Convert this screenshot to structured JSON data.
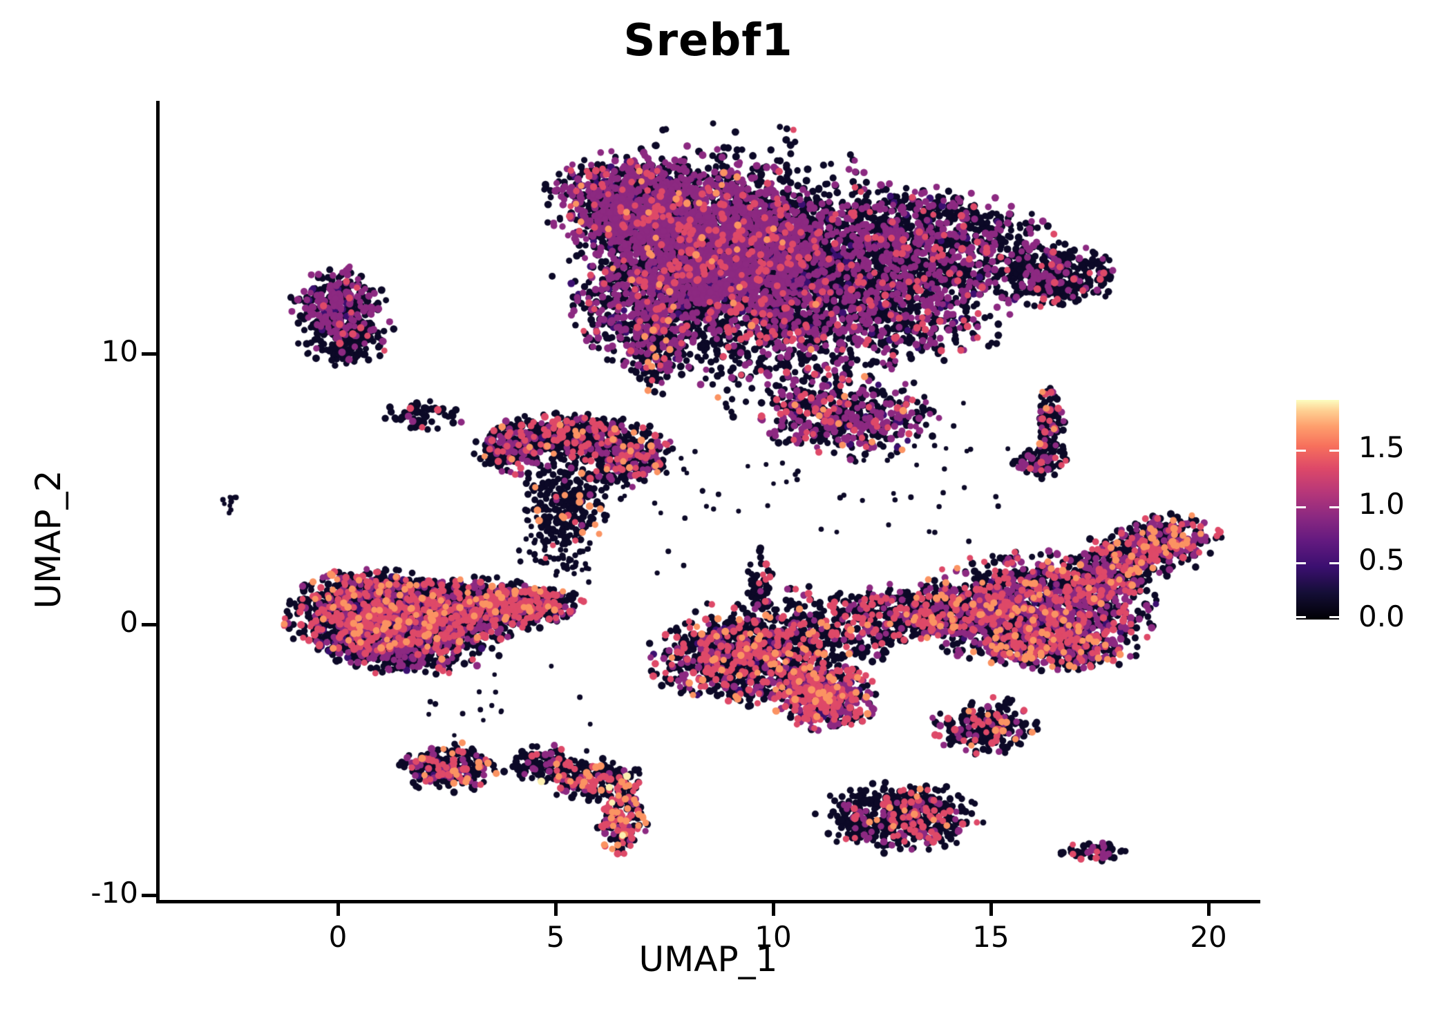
{
  "title": "Srebf1",
  "axes": {
    "x": {
      "label": "UMAP_1",
      "tick_labels": [
        "0",
        "5",
        "10",
        "15",
        "20"
      ],
      "tick_values": [
        0,
        5,
        10,
        15,
        20
      ],
      "range": [
        -4.15,
        21.15
      ]
    },
    "y": {
      "label": "UMAP_2",
      "tick_labels": [
        "10",
        "0",
        "-10"
      ],
      "tick_values": [
        10,
        0,
        -10
      ],
      "range": [
        -10.25,
        19.35
      ]
    }
  },
  "colorbar": {
    "tick_labels": [
      "1.5",
      "1.0",
      "0.5",
      "0.0"
    ],
    "tick_values": [
      1.5,
      1.0,
      0.5,
      0.0
    ],
    "range": [
      0,
      1.95
    ],
    "colormap": "magma",
    "gradient_stops": [
      [
        0,
        "#000004"
      ],
      [
        0.12,
        "#140e36"
      ],
      [
        0.24,
        "#3b0f70"
      ],
      [
        0.36,
        "#641a80"
      ],
      [
        0.47,
        "#8c2981"
      ],
      [
        0.58,
        "#b73779"
      ],
      [
        0.69,
        "#de4968"
      ],
      [
        0.79,
        "#f7705c"
      ],
      [
        0.88,
        "#fe9f6d"
      ],
      [
        0.95,
        "#fecf92"
      ],
      [
        1,
        "#fcfdbf"
      ]
    ]
  },
  "chart_data": {
    "type": "scatter",
    "title": "Srebf1",
    "xlabel": "UMAP_1",
    "ylabel": "UMAP_2",
    "xlim": [
      -4.15,
      21.15
    ],
    "ylim": [
      -10.25,
      19.35
    ],
    "grid": false,
    "legend": {
      "kind": "colorbar",
      "position": "right",
      "values": [
        0.0,
        0.5,
        1.0,
        1.5
      ],
      "range": [
        0,
        1.95
      ]
    },
    "expression_color_levels": {
      "b": "#0c0927",
      "d": "#3b0f70",
      "p": "#8c2981",
      "m": "#de4968",
      "o": "#fb9362",
      "c": "#fcf0b2"
    },
    "point_radius_px": [
      4.4,
      5.6
    ],
    "seed": 1337,
    "n_points_approx": 19800,
    "clusters": [
      {
        "name": "top-mass-left-ridge",
        "components": [
          {
            "cx": 6.7,
            "cy": 15.6,
            "sx": 0.9,
            "sy": 0.85,
            "n": 1000,
            "w": {
              "p": 0.45,
              "m": 0.05,
              "d": 0.04,
              "o": 0.01
            }
          },
          {
            "cx": 8.7,
            "cy": 14.3,
            "sx": 1.25,
            "sy": 1.25,
            "n": 1700,
            "w": {
              "p": 0.44,
              "m": 0.06,
              "d": 0.04,
              "o": 0.01
            }
          },
          {
            "cx": 7.3,
            "cy": 11.9,
            "sx": 0.85,
            "sy": 1.15,
            "n": 800,
            "w": {
              "p": 0.34,
              "m": 0.05,
              "d": 0.05,
              "o": 0.01
            }
          },
          {
            "cx": 9.7,
            "cy": 12.4,
            "sx": 1.05,
            "sy": 1.15,
            "n": 800,
            "w": {
              "p": 0.3,
              "m": 0.06,
              "d": 0.04,
              "o": 0.01
            }
          },
          {
            "cx": 9.0,
            "cy": 13.6,
            "sx": 1.9,
            "sy": 2.2,
            "n": 700,
            "w": {
              "p": 0.22,
              "m": 0.04,
              "d": 0.03
            }
          },
          {
            "cx": 7.25,
            "cy": 10.1,
            "sx": 0.22,
            "sy": 0.85,
            "n": 130,
            "w": {
              "p": 0.06,
              "m": 0.04,
              "o": 0.08
            }
          }
        ]
      },
      {
        "name": "top-mass-right",
        "components": [
          {
            "cx": 12.7,
            "cy": 14.0,
            "sx": 1.7,
            "sy": 1.05,
            "n": 1500,
            "w": {
              "p": 0.25,
              "m": 0.04,
              "d": 0.04
            }
          },
          {
            "cx": 12.4,
            "cy": 11.7,
            "sx": 1.5,
            "sy": 0.95,
            "n": 750,
            "w": {
              "p": 0.28,
              "m": 0.05,
              "d": 0.03
            }
          },
          {
            "cx": 16.5,
            "cy": 12.9,
            "sx": 0.65,
            "sy": 0.55,
            "n": 380,
            "w": {
              "p": 0.12,
              "m": 0.03
            }
          },
          {
            "cx": 11.7,
            "cy": 7.6,
            "sx": 0.95,
            "sy": 0.7,
            "n": 480,
            "w": {
              "p": 0.3,
              "m": 0.06,
              "d": 0.03,
              "o": 0.01
            }
          },
          {
            "cx": 10.6,
            "cy": 10.3,
            "sx": 1.3,
            "sy": 1.4,
            "n": 380,
            "w": {
              "p": 0.22,
              "m": 0.06,
              "o": 0.01
            }
          }
        ]
      },
      {
        "name": "upper-left-island",
        "components": [
          {
            "cx": 0.0,
            "cy": 11.9,
            "sx": 0.5,
            "sy": 0.6,
            "n": 260,
            "w": {
              "p": 0.42,
              "d": 0.05,
              "m": 0.02
            }
          },
          {
            "cx": 0.2,
            "cy": 10.6,
            "sx": 0.5,
            "sy": 0.5,
            "n": 200,
            "w": {
              "p": 0.12,
              "m": 0.02
            }
          }
        ]
      },
      {
        "name": "far-left-speck",
        "components": [
          {
            "cx": -2.45,
            "cy": 4.55,
            "sx": 0.09,
            "sy": 0.2,
            "n": 10,
            "w": {},
            "r": [
              3.2,
              4.2
            ]
          }
        ]
      },
      {
        "name": "small-mid-left",
        "components": [
          {
            "cx": 1.95,
            "cy": 7.75,
            "sx": 0.45,
            "sy": 0.26,
            "n": 60,
            "w": {
              "p": 0.07,
              "m": 0.04
            }
          }
        ]
      },
      {
        "name": "seahorse-arc",
        "components": [
          {
            "cx": 4.15,
            "cy": 6.55,
            "sx": 0.5,
            "sy": 0.5,
            "n": 240,
            "w": {
              "p": 0.18,
              "m": 0.14,
              "d": 0.03,
              "o": 0.01
            }
          },
          {
            "cx": 5.35,
            "cy": 7.0,
            "sx": 0.7,
            "sy": 0.4,
            "n": 300,
            "w": {
              "p": 0.1,
              "m": 0.16,
              "o": 0.02
            }
          },
          {
            "cx": 6.55,
            "cy": 6.3,
            "sx": 0.55,
            "sy": 0.55,
            "n": 320,
            "w": {
              "p": 0.18,
              "m": 0.12,
              "o": 0.03
            }
          },
          {
            "cx": 5.35,
            "cy": 4.65,
            "sx": 0.5,
            "sy": 0.8,
            "n": 210,
            "w": {
              "p": 0.05,
              "m": 0.03,
              "o": 0.04
            }
          },
          {
            "cx": 4.95,
            "cy": 3.1,
            "sx": 0.4,
            "sy": 0.65,
            "n": 80,
            "w": {
              "m": 0.02,
              "o": 0.02
            },
            "r": [
              3.6,
              4.6
            ]
          }
        ]
      },
      {
        "name": "left-large-blob",
        "components": [
          {
            "cx": 0.9,
            "cy": 0.3,
            "sx": 0.95,
            "sy": 0.8,
            "n": 1500,
            "w": {
              "p": 0.13,
              "m": 0.13,
              "d": 0.04,
              "o": 0.04
            }
          },
          {
            "cx": 2.9,
            "cy": 0.55,
            "sx": 1.0,
            "sy": 0.55,
            "n": 900,
            "w": {
              "p": 0.12,
              "m": 0.14,
              "o": 0.03,
              "d": 0.02
            }
          },
          {
            "cx": 4.3,
            "cy": 0.75,
            "sx": 0.6,
            "sy": 0.35,
            "n": 350,
            "w": {
              "p": 0.1,
              "m": 0.2,
              "o": 0.04
            }
          },
          {
            "cx": 1.7,
            "cy": -0.75,
            "sx": 0.95,
            "sy": 0.5,
            "n": 500,
            "w": {
              "p": 0.2,
              "m": 0.1,
              "o": 0.02,
              "d": 0.03
            }
          },
          {
            "cx": 5.3,
            "cy": 2.5,
            "sx": 0.3,
            "sy": 0.55,
            "n": 22,
            "w": {},
            "r": [
              3.2,
              4.2
            ]
          }
        ]
      },
      {
        "name": "center-bottom-manta",
        "components": [
          {
            "cx": 9.7,
            "cy": 1.55,
            "sx": 0.16,
            "sy": 0.6,
            "n": 55,
            "w": {
              "m": 0.12,
              "p": 0.04
            }
          },
          {
            "cx": 9.3,
            "cy": -1.3,
            "sx": 1.0,
            "sy": 0.75,
            "n": 850,
            "w": {
              "p": 0.12,
              "m": 0.18,
              "o": 0.04,
              "d": 0.03
            }
          },
          {
            "cx": 11.2,
            "cy": -2.7,
            "sx": 0.55,
            "sy": 0.55,
            "n": 480,
            "w": {
              "p": 0.3,
              "m": 0.25,
              "o": 0.06,
              "d": 0.04
            }
          },
          {
            "cx": 10.7,
            "cy": -0.3,
            "sx": 1.2,
            "sy": 0.8,
            "n": 420,
            "w": {
              "p": 0.1,
              "m": 0.12,
              "o": 0.02
            }
          },
          {
            "cx": 13.5,
            "cy": 0.4,
            "sx": 1.1,
            "sy": 0.5,
            "n": 480,
            "w": {
              "p": 0.18,
              "m": 0.18,
              "o": 0.03
            }
          },
          {
            "cx": 16.0,
            "cy": 0.6,
            "sx": 1.3,
            "sy": 0.95,
            "n": 1250,
            "w": {
              "p": 0.26,
              "m": 0.12,
              "o": 0.04,
              "d": 0.03
            }
          },
          {
            "cx": 17.3,
            "cy": 1.7,
            "sx": 0.6,
            "sy": 0.5,
            "n": 220,
            "w": {
              "p": 0.24,
              "m": 0.12,
              "o": 0.05
            }
          },
          {
            "cx": 18.3,
            "cy": 2.55,
            "sx": 0.55,
            "sy": 0.45,
            "n": 230,
            "w": {
              "p": 0.26,
              "m": 0.13,
              "o": 0.07
            }
          },
          {
            "cx": 19.15,
            "cy": 3.2,
            "sx": 0.5,
            "sy": 0.4,
            "n": 220,
            "w": {
              "p": 0.28,
              "m": 0.14,
              "o": 0.08
            }
          },
          {
            "cx": 16.5,
            "cy": -0.9,
            "sx": 0.85,
            "sy": 0.4,
            "n": 300,
            "w": {
              "p": 0.18,
              "m": 0.22,
              "o": 0.08
            }
          },
          {
            "cx": 14.9,
            "cy": -3.8,
            "sx": 0.6,
            "sy": 0.5,
            "n": 230,
            "w": {
              "p": 0.12,
              "m": 0.1,
              "o": 0.05
            }
          }
        ]
      },
      {
        "name": "right-vertical-strip",
        "components": [
          {
            "cx": 16.35,
            "cy": 7.3,
            "sx": 0.16,
            "sy": 0.7,
            "n": 110,
            "w": {
              "p": 0.16,
              "m": 0.12,
              "o": 0.04
            }
          },
          {
            "cx": 16.15,
            "cy": 5.95,
            "sx": 0.3,
            "sy": 0.28,
            "n": 70,
            "w": {
              "p": 0.25,
              "m": 0.05
            }
          }
        ]
      },
      {
        "name": "bottom-left-island",
        "components": [
          {
            "cx": 2.55,
            "cy": -5.3,
            "sx": 0.5,
            "sy": 0.42,
            "n": 250,
            "w": {
              "p": 0.14,
              "m": 0.12,
              "o": 0.07,
              "d": 0.03
            }
          }
        ]
      },
      {
        "name": "bottom-crescent",
        "components": [
          {
            "cx": 4.85,
            "cy": -5.15,
            "sx": 0.5,
            "sy": 0.3,
            "n": 130,
            "w": {
              "p": 0.08,
              "m": 0.08,
              "o": 0.04
            }
          },
          {
            "cx": 5.85,
            "cy": -5.75,
            "sx": 0.55,
            "sy": 0.35,
            "n": 170,
            "w": {
              "p": 0.08,
              "m": 0.2,
              "o": 0.08,
              "c": 0.02
            }
          },
          {
            "cx": 6.55,
            "cy": -7.1,
            "sx": 0.28,
            "sy": 0.65,
            "n": 160,
            "w": {
              "p": 0.1,
              "m": 0.25,
              "o": 0.12,
              "c": 0.02
            }
          }
        ]
      },
      {
        "name": "bottom-center-island",
        "components": [
          {
            "cx": 12.9,
            "cy": -7.1,
            "sx": 0.85,
            "sy": 0.6,
            "n": 560,
            "w": {
              "p": 0.1,
              "m": 0.12,
              "o": 0.01
            }
          }
        ]
      },
      {
        "name": "bottom-right-streak",
        "components": [
          {
            "cx": 17.35,
            "cy": -8.4,
            "sx": 0.38,
            "sy": 0.16,
            "n": 55,
            "w": {
              "p": 0.1,
              "m": 0.08
            }
          }
        ]
      },
      {
        "name": "stray-points",
        "components": [
          {
            "cx": 8.0,
            "cy": 4.6,
            "sx": 1.6,
            "sy": 1.3,
            "n": 25,
            "w": {},
            "r": [
              3.2,
              4.2
            ]
          },
          {
            "cx": 12.6,
            "cy": 4.8,
            "sx": 1.6,
            "sy": 1.3,
            "n": 20,
            "w": {},
            "r": [
              3.2,
              4.2
            ]
          },
          {
            "cx": 3.8,
            "cy": -3.2,
            "sx": 1.3,
            "sy": 0.9,
            "n": 18,
            "w": {},
            "r": [
              3.2,
              4.2
            ]
          },
          {
            "cx": 14.2,
            "cy": 6.5,
            "sx": 1.2,
            "sy": 1.0,
            "n": 15,
            "w": {},
            "r": [
              3.2,
              4.2
            ]
          }
        ]
      }
    ]
  }
}
